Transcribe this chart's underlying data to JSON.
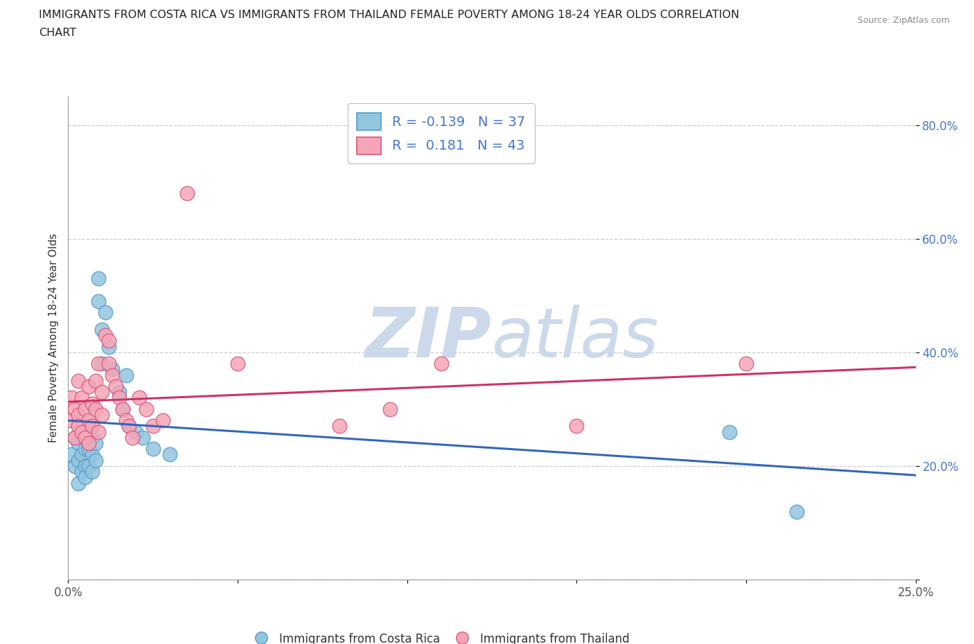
{
  "title_line1": "IMMIGRANTS FROM COSTA RICA VS IMMIGRANTS FROM THAILAND FEMALE POVERTY AMONG 18-24 YEAR OLDS CORRELATION",
  "title_line2": "CHART",
  "source_text": "Source: ZipAtlas.com",
  "ylabel": "Female Poverty Among 18-24 Year Olds",
  "xlabel_costa_rica": "Immigrants from Costa Rica",
  "xlabel_thailand": "Immigrants from Thailand",
  "xlim": [
    0.0,
    0.25
  ],
  "ylim": [
    0.0,
    0.85
  ],
  "R_costa_rica": -0.139,
  "N_costa_rica": 37,
  "R_thailand": 0.181,
  "N_thailand": 43,
  "color_costa_rica": "#92c5de",
  "color_thailand": "#f4a6b8",
  "edge_costa_rica": "#5599cc",
  "edge_thailand": "#dd5577",
  "trendline_color_costa_rica": "#3366bb",
  "trendline_color_thailand": "#cc3366",
  "watermark_color": "#ccd9ea",
  "ytick_color": "#4477cc",
  "costa_rica_x": [
    0.001,
    0.002,
    0.002,
    0.003,
    0.003,
    0.003,
    0.004,
    0.004,
    0.004,
    0.005,
    0.005,
    0.005,
    0.006,
    0.006,
    0.006,
    0.007,
    0.007,
    0.007,
    0.008,
    0.008,
    0.009,
    0.009,
    0.01,
    0.01,
    0.011,
    0.012,
    0.013,
    0.015,
    0.016,
    0.017,
    0.018,
    0.02,
    0.022,
    0.025,
    0.03,
    0.195,
    0.215
  ],
  "costa_rica_y": [
    0.22,
    0.25,
    0.2,
    0.24,
    0.21,
    0.17,
    0.26,
    0.22,
    0.19,
    0.23,
    0.2,
    0.18,
    0.27,
    0.23,
    0.2,
    0.25,
    0.22,
    0.19,
    0.24,
    0.21,
    0.53,
    0.49,
    0.44,
    0.38,
    0.47,
    0.41,
    0.37,
    0.33,
    0.3,
    0.36,
    0.27,
    0.26,
    0.25,
    0.23,
    0.22,
    0.26,
    0.12
  ],
  "thailand_x": [
    0.001,
    0.001,
    0.002,
    0.002,
    0.003,
    0.003,
    0.003,
    0.004,
    0.004,
    0.005,
    0.005,
    0.006,
    0.006,
    0.006,
    0.007,
    0.007,
    0.008,
    0.008,
    0.009,
    0.009,
    0.01,
    0.01,
    0.011,
    0.012,
    0.012,
    0.013,
    0.014,
    0.015,
    0.016,
    0.017,
    0.018,
    0.019,
    0.021,
    0.023,
    0.025,
    0.028,
    0.035,
    0.05,
    0.08,
    0.095,
    0.11,
    0.15,
    0.2
  ],
  "thailand_y": [
    0.28,
    0.32,
    0.3,
    0.25,
    0.35,
    0.29,
    0.27,
    0.32,
    0.26,
    0.3,
    0.25,
    0.34,
    0.28,
    0.24,
    0.31,
    0.27,
    0.35,
    0.3,
    0.38,
    0.26,
    0.33,
    0.29,
    0.43,
    0.42,
    0.38,
    0.36,
    0.34,
    0.32,
    0.3,
    0.28,
    0.27,
    0.25,
    0.32,
    0.3,
    0.27,
    0.28,
    0.68,
    0.38,
    0.27,
    0.3,
    0.38,
    0.27,
    0.38
  ]
}
